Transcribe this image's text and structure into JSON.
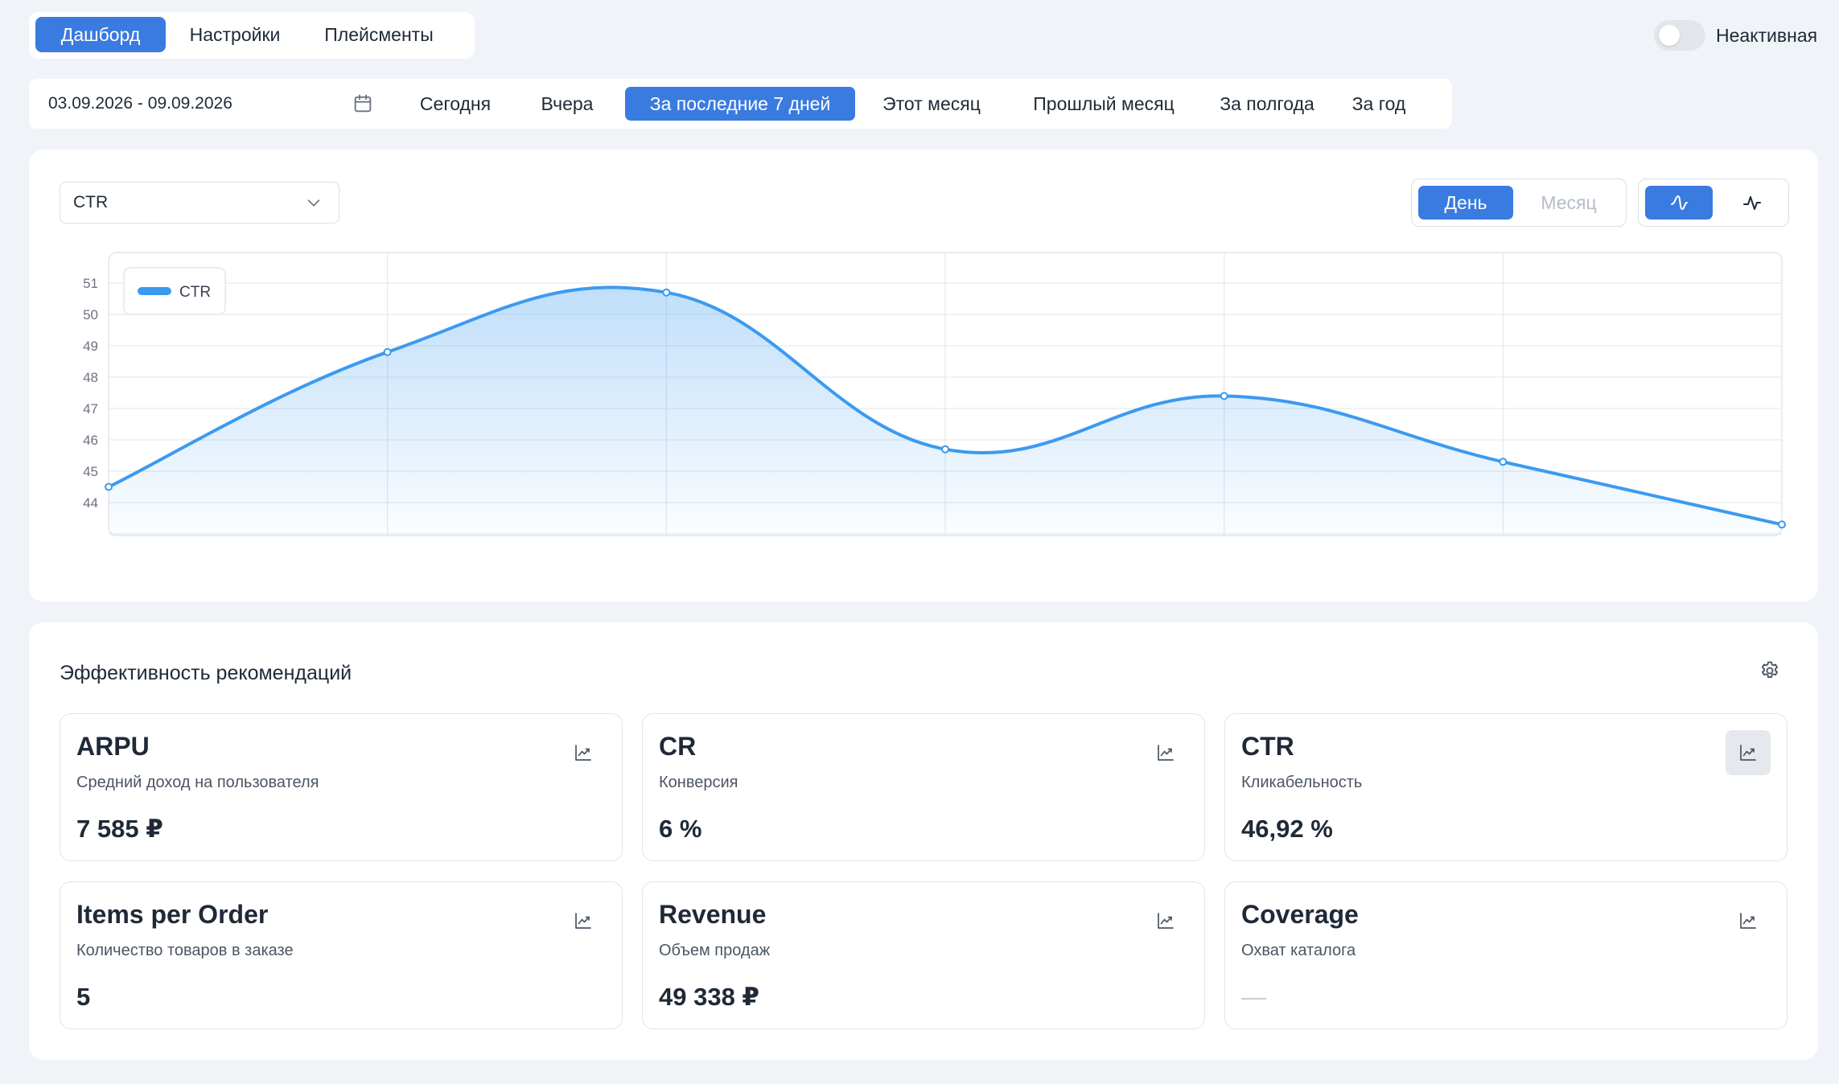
{
  "tabs": [
    {
      "label": "Дашборд",
      "active": true
    },
    {
      "label": "Настройки",
      "active": false
    },
    {
      "label": "Плейсменты",
      "active": false
    }
  ],
  "status_toggle": {
    "label": "Неактивная",
    "on": false
  },
  "period": {
    "date_range": "03.09.2026 - 09.09.2026",
    "buttons": [
      {
        "label": "Сегодня",
        "active": false
      },
      {
        "label": "Вчера",
        "active": false
      },
      {
        "label": "За последние 7 дней",
        "active": true
      },
      {
        "label": "Этот месяц",
        "active": false
      },
      {
        "label": "Прошлый месяц",
        "active": false
      },
      {
        "label": "За полгода",
        "active": false
      },
      {
        "label": "За год",
        "active": false
      }
    ]
  },
  "metric_select": {
    "value": "CTR"
  },
  "granularity": [
    {
      "label": "День",
      "active": true
    },
    {
      "label": "Месяц",
      "active": false
    }
  ],
  "chart_style": {
    "active": "smooth"
  },
  "colors": {
    "accent": "#3a7be0",
    "series": "#3b9af0",
    "background": "#f0f4f9"
  },
  "chart_data": {
    "type": "area",
    "series": [
      {
        "name": "CTR",
        "values": [
          44.5,
          48.8,
          50.7,
          45.7,
          47.4,
          45.3,
          43.3
        ]
      }
    ],
    "yticks": [
      44,
      45,
      46,
      47,
      48,
      49,
      50,
      51
    ],
    "ylim": [
      43,
      51.5
    ],
    "grid": true,
    "legend": "top-left",
    "smooth": true
  },
  "recommendations": {
    "title": "Эффективность рекомендаций",
    "metrics": [
      {
        "title": "ARPU",
        "subtitle": "Средний доход на пользователя",
        "value": "7 585 ₽",
        "icon": "chart-icon",
        "active": false
      },
      {
        "title": "CR",
        "subtitle": "Конверсия",
        "value": "6 %",
        "icon": "chart-icon",
        "active": false
      },
      {
        "title": "CTR",
        "subtitle": "Кликабельность",
        "value": "46,92 %",
        "icon": "chart-icon",
        "active": true
      },
      {
        "title": "Items per Order",
        "subtitle": "Количество товаров в заказе",
        "value": "5",
        "icon": "chart-icon",
        "active": false
      },
      {
        "title": "Revenue",
        "subtitle": "Объем продаж",
        "value": "49 338 ₽",
        "icon": "chart-icon",
        "active": false
      },
      {
        "title": "Coverage",
        "subtitle": "Охват каталога",
        "value": "—",
        "icon": "chart-icon",
        "active": false
      }
    ]
  }
}
